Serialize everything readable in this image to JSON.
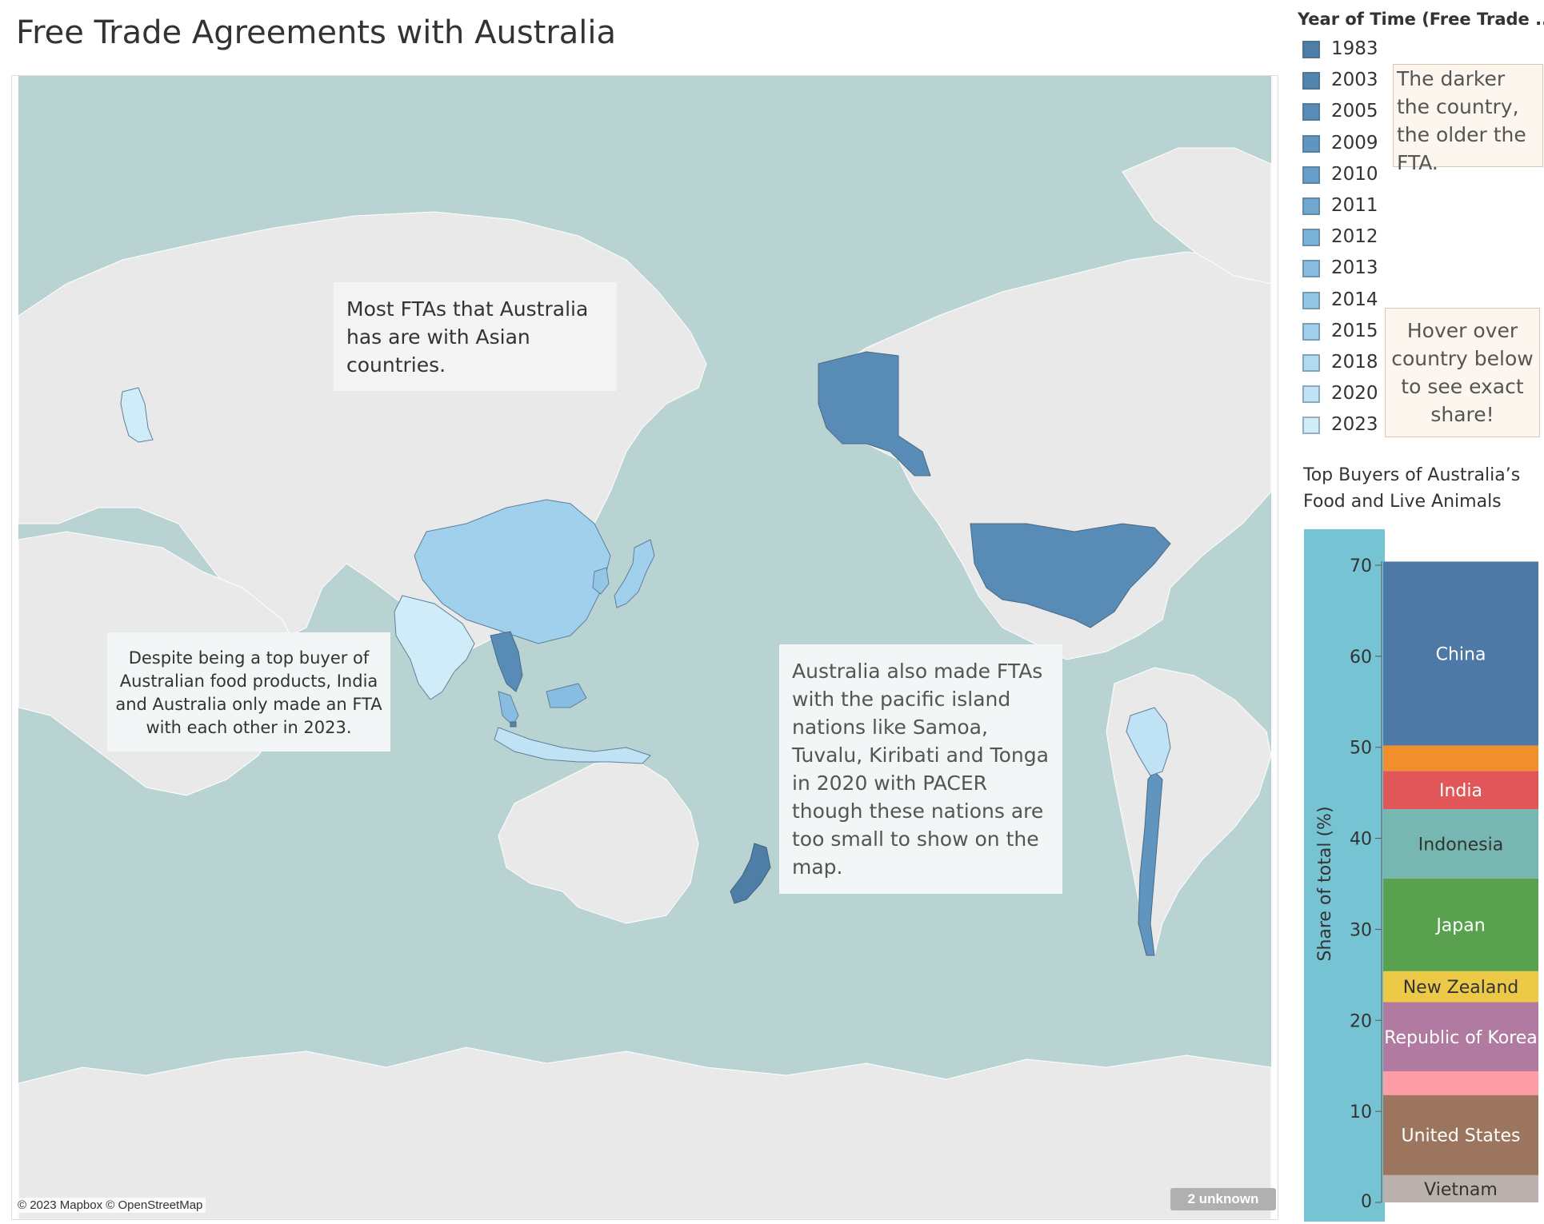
{
  "title": "Free Trade Agreements with Australia",
  "map": {
    "credit": "© 2023 Mapbox © OpenStreetMap",
    "unknown_badge": "2 unknown",
    "water_color": "#b9d3d3",
    "land_color": "#e9e9e9",
    "annotations": {
      "asia": "Most FTAs that Australia has are with Asian countries.",
      "india": "Despite being a top buyer of Australian food products, India and Australia only made an FTA with each other in 2023.",
      "pacific": "Australia also made FTAs with the pacific island nations like Samoa, Tuvalu, Kiribati and Tonga in 2020 with PACER though these nations are too small to show on the map."
    },
    "countries": [
      {
        "name": "United Kingdom",
        "year": 2023
      },
      {
        "name": "China",
        "year": 2015
      },
      {
        "name": "India",
        "year": 2023
      },
      {
        "name": "Japan",
        "year": 2015
      },
      {
        "name": "Republic of Korea",
        "year": 2014
      },
      {
        "name": "Thailand",
        "year": 2005
      },
      {
        "name": "Malaysia",
        "year": 2013
      },
      {
        "name": "Singapore",
        "year": 2003
      },
      {
        "name": "Indonesia",
        "year": 2020
      },
      {
        "name": "United States",
        "year": 2005
      },
      {
        "name": "New Zealand",
        "year": 1983
      },
      {
        "name": "Chile",
        "year": 2009
      },
      {
        "name": "Peru",
        "year": 2020
      }
    ]
  },
  "legend": {
    "title": "Year of Time (Free Trade ..",
    "items": [
      {
        "label": "1983",
        "color": "#4e7ea6"
      },
      {
        "label": "2003",
        "color": "#5384ad"
      },
      {
        "label": "2005",
        "color": "#588cb6"
      },
      {
        "label": "2009",
        "color": "#5f95bf"
      },
      {
        "label": "2010",
        "color": "#679ec7"
      },
      {
        "label": "2011",
        "color": "#70a8d0"
      },
      {
        "label": "2012",
        "color": "#7ab2d8"
      },
      {
        "label": "2013",
        "color": "#87bde0"
      },
      {
        "label": "2014",
        "color": "#94c7e6"
      },
      {
        "label": "2015",
        "color": "#a1d0ec"
      },
      {
        "label": "2018",
        "color": "#b0daf1"
      },
      {
        "label": "2020",
        "color": "#bfe3f5"
      },
      {
        "label": "2023",
        "color": "#d0ecf8"
      }
    ]
  },
  "notes": {
    "darker": "The darker the country, the older the FTA.",
    "hover": "Hover over country below to see exact share!"
  },
  "chart_title": "Top Buyers of Australia’s Food and Live Animals",
  "chart_data": {
    "type": "bar",
    "stacked": true,
    "title": "Top Buyers of Australia’s Food and Live Animals",
    "ylabel": "Share of total (%)",
    "ylim": [
      0,
      70
    ],
    "yticks": [
      0,
      10,
      20,
      30,
      40,
      50,
      60,
      70
    ],
    "background_bar_color": "#76c3d3",
    "series": [
      {
        "name": "Vietnam",
        "value": 3.0,
        "color": "#bab0ac",
        "label": "Vietnam",
        "label_color": "#333333"
      },
      {
        "name": "United States",
        "value": 8.8,
        "color": "#9c755f",
        "label": "United States",
        "label_color": "#ffffff"
      },
      {
        "name": "",
        "value": 2.6,
        "color": "#ff9da7",
        "label": "",
        "label_color": "#ffffff"
      },
      {
        "name": "Republic of Korea",
        "value": 7.6,
        "color": "#b07aa1",
        "label": "Republic of Korea",
        "label_color": "#ffffff"
      },
      {
        "name": "New Zealand",
        "value": 3.4,
        "color": "#edc948",
        "label": "New Zealand",
        "label_color": "#333333"
      },
      {
        "name": "Japan",
        "value": 10.2,
        "color": "#59a14f",
        "label": "Japan",
        "label_color": "#ffffff"
      },
      {
        "name": "Indonesia",
        "value": 7.6,
        "color": "#76b7b2",
        "label": "Indonesia",
        "label_color": "#333333"
      },
      {
        "name": "India",
        "value": 4.2,
        "color": "#e15759",
        "label": "India",
        "label_color": "#ffffff"
      },
      {
        "name": "",
        "value": 2.8,
        "color": "#f28e2b",
        "label": "",
        "label_color": "#ffffff"
      },
      {
        "name": "China",
        "value": 20.2,
        "color": "#4e79a7",
        "label": "China",
        "label_color": "#ffffff"
      }
    ]
  }
}
